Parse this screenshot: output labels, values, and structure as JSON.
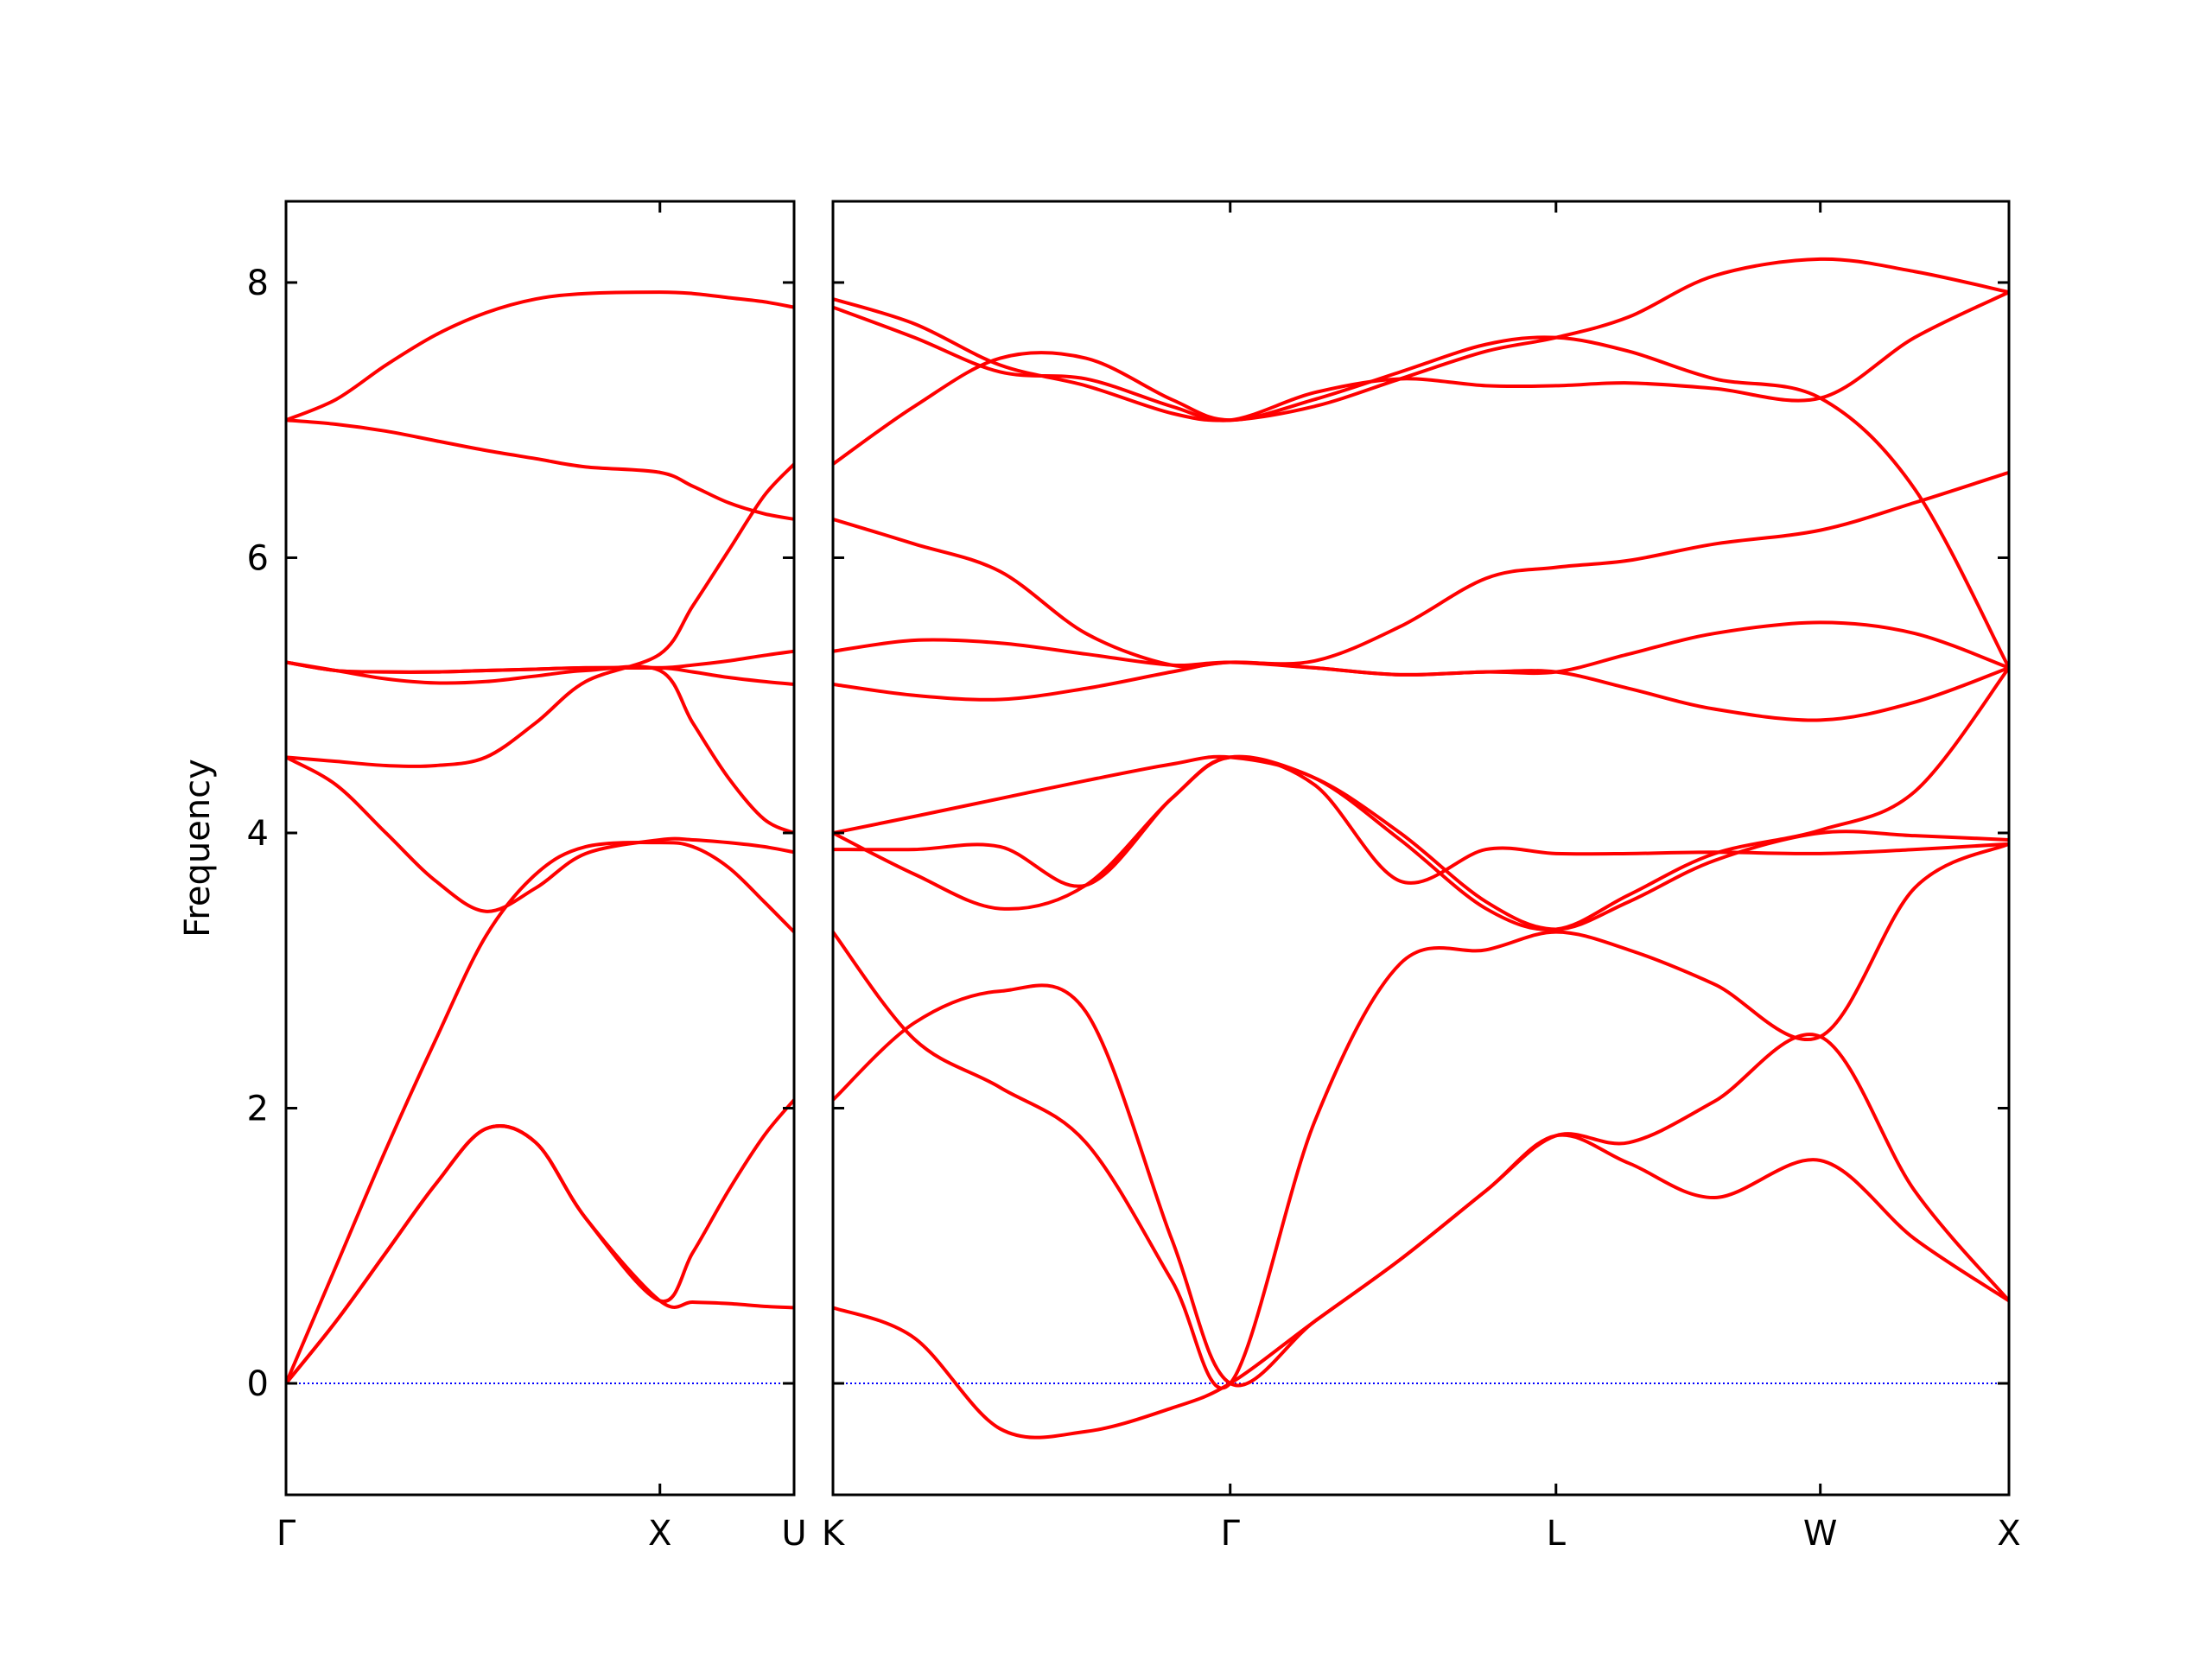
{
  "chart_data": [
    {
      "type": "line",
      "ylabel": "Frequency",
      "x": [
        0,
        0.35,
        0.7,
        1.05,
        1.4,
        1.75,
        2.1,
        2.62,
        2.85,
        3.1,
        3.35,
        3.56
      ],
      "xlim": [
        0,
        3.56
      ],
      "xticks": [
        {
          "value": 0,
          "label": "Γ"
        },
        {
          "value": 2.62,
          "label": "X"
        },
        {
          "value": 3.56,
          "label": "U"
        }
      ],
      "ylim": [
        -0.81,
        8.59
      ],
      "yticks": [
        0,
        2,
        4,
        6,
        8
      ],
      "show_ytick_labels": true,
      "hline": {
        "value": 0,
        "color": "#0000ff",
        "style": "dotted"
      },
      "series": [
        {
          "color": "#ff0000",
          "values": [
            0,
            0.45,
            0.95,
            1.45,
            1.85,
            1.75,
            1.2,
            0.6,
            0.59,
            0.58,
            0.56,
            0.55
          ]
        },
        {
          "color": "#ff0000",
          "values": [
            0,
            0.45,
            0.95,
            1.45,
            1.85,
            1.75,
            1.2,
            0.6,
            0.95,
            1.4,
            1.8,
            2.06
          ]
        },
        {
          "color": "#ff0000",
          "values": [
            0,
            0.85,
            1.7,
            2.5,
            3.25,
            3.7,
            3.9,
            3.93,
            3.9,
            3.75,
            3.5,
            3.28
          ]
        },
        {
          "color": "#ff0000",
          "values": [
            4.55,
            4.35,
            4.0,
            3.65,
            3.43,
            3.6,
            3.85,
            3.95,
            3.95,
            3.93,
            3.9,
            3.86
          ]
        },
        {
          "color": "#ff0000",
          "values": [
            4.55,
            4.52,
            4.49,
            4.49,
            4.55,
            4.8,
            5.1,
            5.3,
            5.65,
            6.05,
            6.45,
            6.68
          ]
        },
        {
          "color": "#ff0000",
          "values": [
            5.24,
            5.18,
            5.12,
            5.09,
            5.1,
            5.14,
            5.18,
            5.18,
            4.8,
            4.4,
            4.1,
            4.0
          ]
        },
        {
          "color": "#ff0000",
          "values": [
            5.24,
            5.18,
            5.17,
            5.17,
            5.18,
            5.19,
            5.2,
            5.2,
            5.17,
            5.13,
            5.1,
            5.08
          ]
        },
        {
          "color": "#ff0000",
          "values": [
            5.24,
            5.18,
            5.17,
            5.17,
            5.18,
            5.19,
            5.2,
            5.2,
            5.22,
            5.25,
            5.29,
            5.32
          ]
        },
        {
          "color": "#ff0000",
          "values": [
            7.0,
            6.97,
            6.92,
            6.85,
            6.78,
            6.72,
            6.66,
            6.62,
            6.52,
            6.4,
            6.32,
            6.28
          ]
        },
        {
          "color": "#ff0000",
          "values": [
            7.0,
            7.15,
            7.4,
            7.62,
            7.78,
            7.88,
            7.92,
            7.93,
            7.92,
            7.89,
            7.86,
            7.82
          ]
        }
      ]
    },
    {
      "type": "line",
      "x": [
        0,
        0.57,
        1.17,
        1.77,
        2.37,
        2.78,
        3.37,
        3.97,
        4.57,
        5.06,
        5.57,
        6.17,
        6.91,
        7.57,
        8.23
      ],
      "xlim": [
        0,
        8.23
      ],
      "xticks": [
        {
          "value": 0,
          "label": "K"
        },
        {
          "value": 2.78,
          "label": "Γ"
        },
        {
          "value": 5.06,
          "label": "L"
        },
        {
          "value": 6.91,
          "label": "W"
        },
        {
          "value": 8.23,
          "label": "X"
        }
      ],
      "ylim": [
        -0.81,
        8.59
      ],
      "yticks": [
        0,
        2,
        4,
        6,
        8
      ],
      "show_ytick_labels": false,
      "hline": {
        "value": 0,
        "color": "#0000ff",
        "style": "dotted"
      },
      "series": [
        {
          "color": "#ff0000",
          "values": [
            0.55,
            0.33,
            -0.33,
            -0.35,
            -0.18,
            0,
            0.45,
            0.9,
            1.4,
            1.8,
            1.6,
            1.35,
            1.62,
            1.05,
            0.6
          ]
        },
        {
          "color": "#ff0000",
          "values": [
            2.06,
            2.62,
            2.85,
            2.7,
            1.05,
            0,
            0.45,
            0.9,
            1.4,
            1.8,
            1.75,
            2.05,
            2.52,
            1.4,
            0.6
          ]
        },
        {
          "color": "#ff0000",
          "values": [
            3.28,
            2.5,
            2.15,
            1.75,
            0.75,
            0,
            1.9,
            3.05,
            3.15,
            3.28,
            3.15,
            2.9,
            2.52,
            3.6,
            3.92
          ]
        },
        {
          "color": "#ff0000",
          "values": [
            3.88,
            3.88,
            3.9,
            3.62,
            4.25,
            4.55,
            4.35,
            3.65,
            3.88,
            3.85,
            3.85,
            3.86,
            3.85,
            3.88,
            3.92
          ]
        },
        {
          "color": "#ff0000",
          "values": [
            4.0,
            3.7,
            3.45,
            3.62,
            4.25,
            4.55,
            4.4,
            4.0,
            3.5,
            3.3,
            3.5,
            3.8,
            4.0,
            3.98,
            3.95
          ]
        },
        {
          "color": "#ff0000",
          "values": [
            4.0,
            4.12,
            4.25,
            4.38,
            4.5,
            4.55,
            4.4,
            3.95,
            3.45,
            3.3,
            3.55,
            3.85,
            4.02,
            4.3,
            5.2
          ]
        },
        {
          "color": "#ff0000",
          "values": [
            5.08,
            5.0,
            4.97,
            5.05,
            5.17,
            5.24,
            5.2,
            5.15,
            5.17,
            5.17,
            5.05,
            4.9,
            4.82,
            4.95,
            5.2
          ]
        },
        {
          "color": "#ff0000",
          "values": [
            5.32,
            5.4,
            5.38,
            5.3,
            5.22,
            5.24,
            5.2,
            5.15,
            5.17,
            5.17,
            5.3,
            5.45,
            5.53,
            5.45,
            5.2
          ]
        },
        {
          "color": "#ff0000",
          "values": [
            6.28,
            6.1,
            5.9,
            5.45,
            5.22,
            5.24,
            5.25,
            5.5,
            5.85,
            5.93,
            5.98,
            6.1,
            6.2,
            6.4,
            6.62
          ]
        },
        {
          "color": "#ff0000",
          "values": [
            6.68,
            7.1,
            7.45,
            7.45,
            7.15,
            7.0,
            7.15,
            7.35,
            7.55,
            7.6,
            7.5,
            7.3,
            7.16,
            6.5,
            5.2
          ]
        },
        {
          "color": "#ff0000",
          "values": [
            7.82,
            7.6,
            7.35,
            7.3,
            7.1,
            7.0,
            7.2,
            7.3,
            7.25,
            7.25,
            7.27,
            7.23,
            7.16,
            7.6,
            7.93
          ]
        },
        {
          "color": "#ff0000",
          "values": [
            7.88,
            7.7,
            7.4,
            7.25,
            7.05,
            7.0,
            7.1,
            7.3,
            7.5,
            7.6,
            7.75,
            8.05,
            8.17,
            8.08,
            7.93
          ]
        }
      ]
    }
  ]
}
